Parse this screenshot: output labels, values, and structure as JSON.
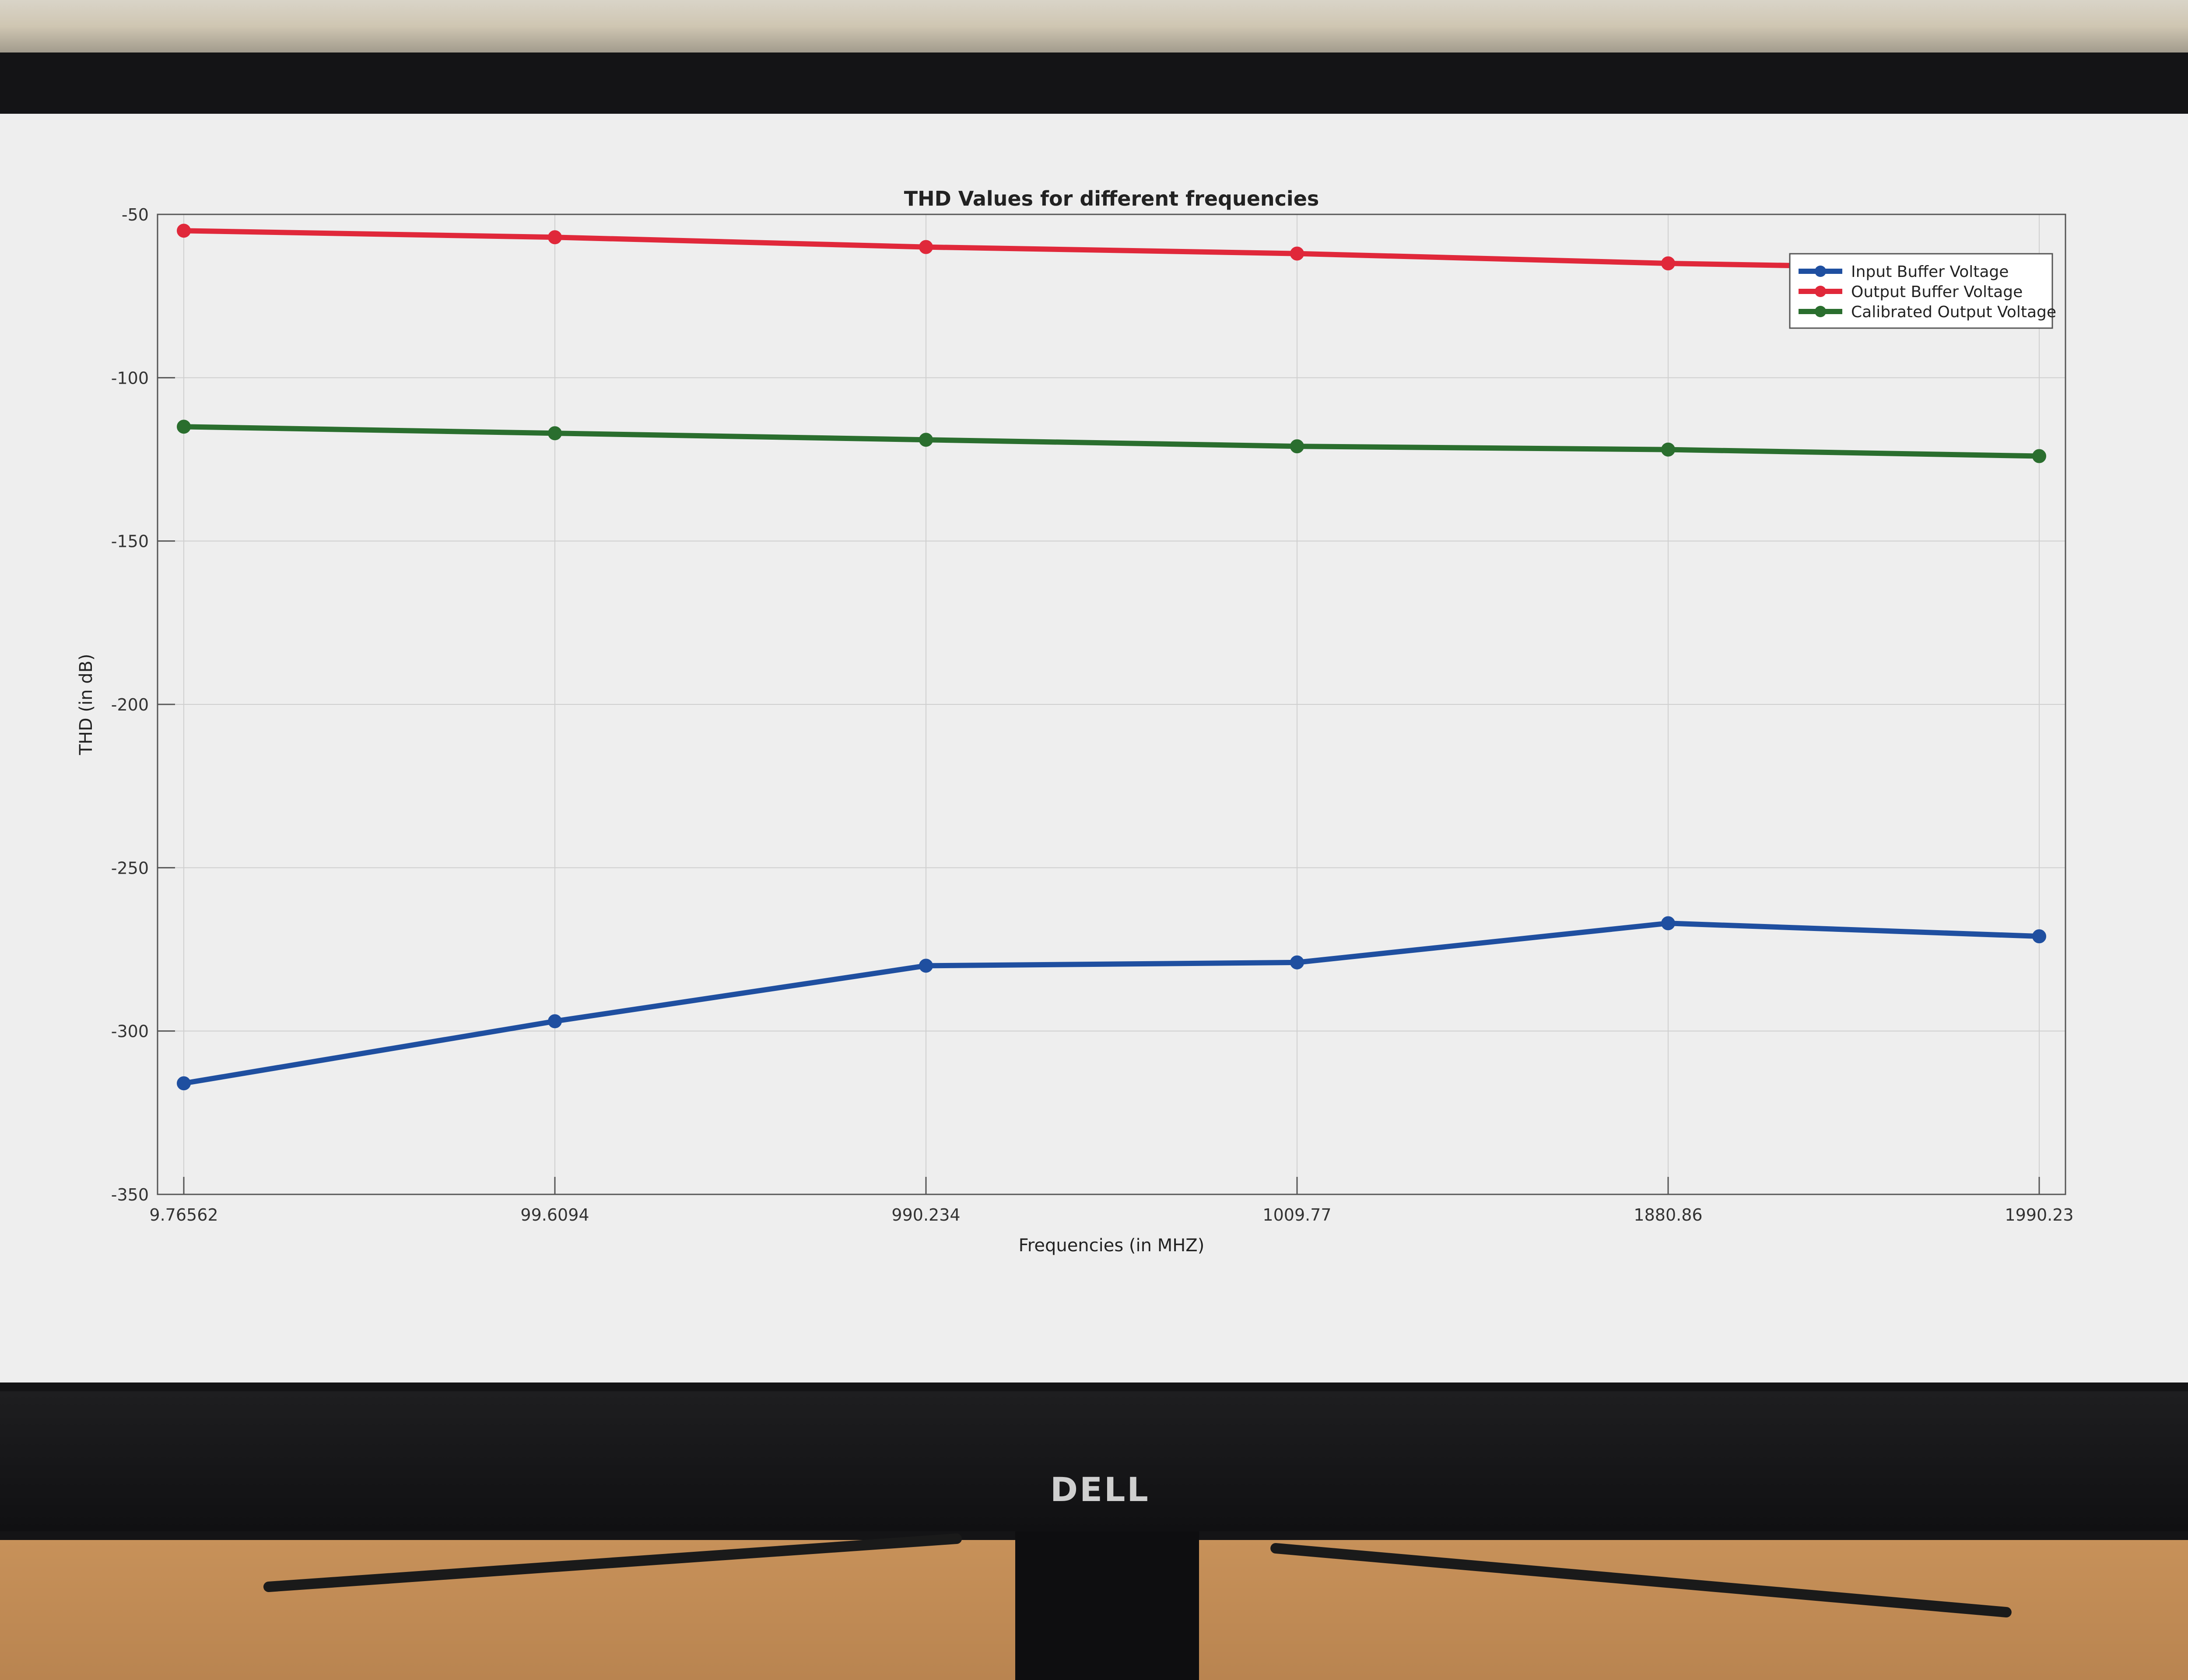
{
  "chart_data": {
    "type": "line",
    "title": "THD Values for different frequencies",
    "xlabel": "Frequencies (in MHZ)",
    "ylabel": "THD (in dB)",
    "categories": [
      "9.76562",
      "99.6094",
      "990.234",
      "1009.77",
      "1880.86",
      "1990.23"
    ],
    "ylim": [
      -350,
      -50
    ],
    "yticks": [
      "-350",
      "-300",
      "-250",
      "-200",
      "-150",
      "-100",
      "-50"
    ],
    "grid": true,
    "legend_position": "top-right",
    "series": [
      {
        "name": "Input Buffer Voltage",
        "color": "#1f4fa0",
        "values": [
          -316,
          -297,
          -280,
          -279,
          -267,
          -271
        ]
      },
      {
        "name": "Output Buffer Voltage",
        "color": "#e0283a",
        "values": [
          -55,
          -57,
          -60,
          -62,
          -65,
          -67
        ]
      },
      {
        "name": "Calibrated Output Voltage",
        "color": "#2a6e2e",
        "values": [
          -115,
          -117,
          -119,
          -121,
          -122,
          -124
        ]
      }
    ]
  },
  "monitor": {
    "brand": "DELL"
  }
}
